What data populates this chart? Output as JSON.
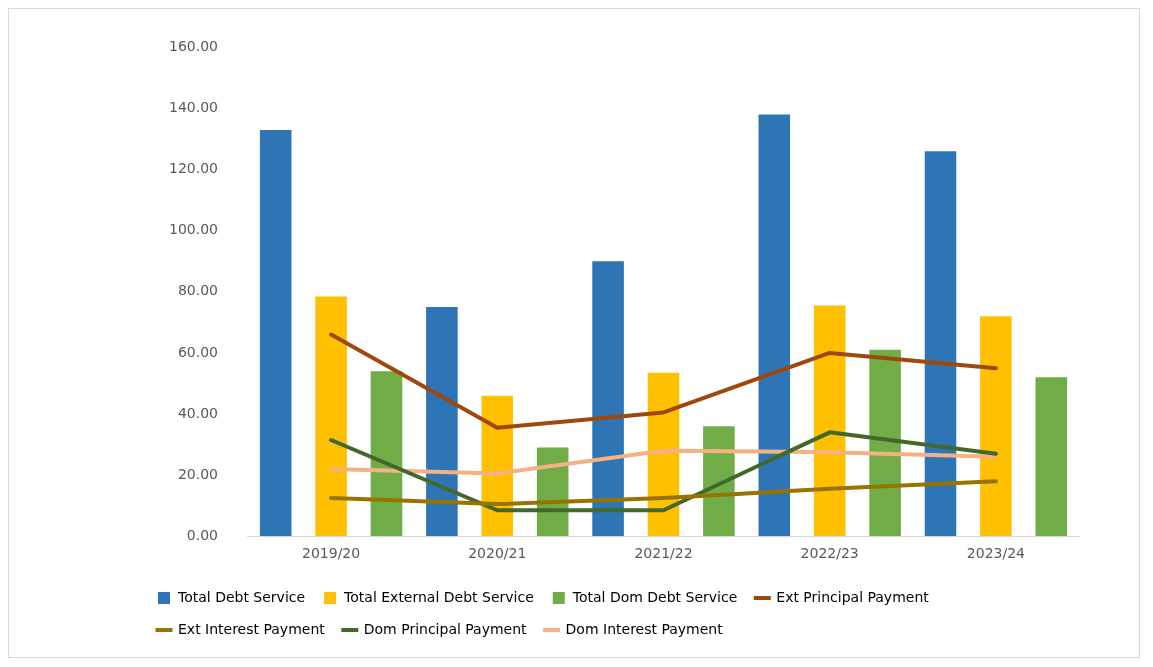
{
  "chart_data": {
    "type": "bar",
    "categories": [
      "2019/20",
      "2020/21",
      "2021/22",
      "2022/23",
      "2023/24"
    ],
    "series": [
      {
        "name": "Total Debt Service",
        "color": "#2e75b6",
        "values": [
          133,
          75,
          90,
          138,
          126
        ]
      },
      {
        "name": "Total External Debt Service",
        "color": "#ffc000",
        "values": [
          78.5,
          46,
          53.5,
          75.5,
          72
        ]
      },
      {
        "name": "Total Dom Debt Service",
        "color": "#70ad47",
        "values": [
          54,
          29,
          36,
          61,
          52
        ]
      },
      {
        "name": "Ext Principal Payment",
        "type": "line",
        "color": "#9e480e",
        "values": [
          66,
          35.5,
          40.5,
          60,
          55
        ]
      },
      {
        "name": "Ext Interest Payment",
        "type": "line",
        "color": "#997300",
        "values": [
          12.5,
          10.5,
          12.5,
          15.5,
          18
        ]
      },
      {
        "name": "Dom Principal Payment",
        "type": "line",
        "color": "#43682b",
        "values": [
          31.5,
          8.5,
          8.5,
          34,
          27
        ]
      },
      {
        "name": "Dom Interest Payment",
        "type": "line",
        "color": "#f4b183",
        "values": [
          22,
          20.5,
          28,
          27.5,
          26
        ]
      }
    ],
    "ylim": [
      0,
      160
    ],
    "yticks": [
      {
        "value": 0,
        "label": "0.00"
      },
      {
        "value": 20,
        "label": "20.00"
      },
      {
        "value": 40,
        "label": "40.00"
      },
      {
        "value": 60,
        "label": "60.00"
      },
      {
        "value": 80,
        "label": "80.00"
      },
      {
        "value": 100,
        "label": "100.00"
      },
      {
        "value": 120,
        "label": "120.00"
      },
      {
        "value": 140,
        "label": "140.00"
      },
      {
        "value": 160,
        "label": "160.00"
      }
    ],
    "grid": false,
    "legend": "bottom",
    "marker": "none",
    "line_style": "solid"
  }
}
